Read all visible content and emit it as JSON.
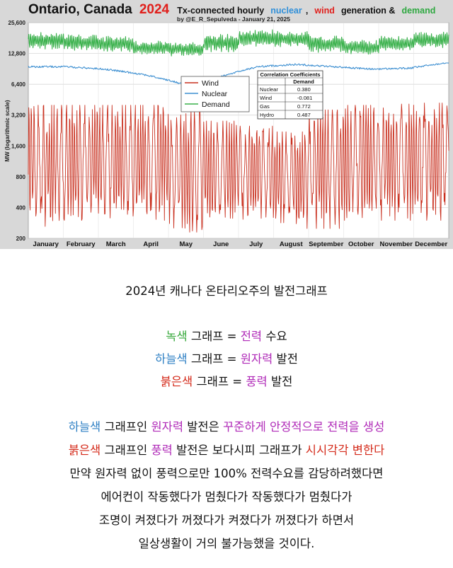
{
  "chart_data": {
    "type": "line",
    "title": {
      "region": "Ontario, Canada",
      "year": "2024",
      "prefix": "Tx-connected hourly",
      "w_nuclear": "nuclear",
      "sep1": ",",
      "w_wind": "wind",
      "w_generation": "generation &",
      "w_demand": "demand"
    },
    "subtitle": "by @E_R_Sepulveda - January 21, 2025",
    "ylabel": "MW (logarithmic scale)",
    "yscale": "log",
    "ylim": [
      200,
      25600
    ],
    "yticks": [
      200,
      400,
      800,
      1600,
      3200,
      6400,
      12800,
      25600
    ],
    "ytick_labels": [
      "200",
      "400",
      "800",
      "1,600",
      "3,200",
      "6,400",
      "12,800",
      "25,600"
    ],
    "x_months": [
      "January",
      "February",
      "March",
      "April",
      "May",
      "June",
      "July",
      "August",
      "September",
      "October",
      "November",
      "December"
    ],
    "series": [
      {
        "name": "Wind",
        "color": "#c9301f",
        "approx_monthly_range_mw": [
          [
            250,
            4000
          ],
          [
            300,
            4000
          ],
          [
            300,
            4000
          ],
          [
            300,
            4000
          ],
          [
            230,
            3500
          ],
          [
            300,
            2800
          ],
          [
            300,
            2500
          ],
          [
            250,
            2200
          ],
          [
            250,
            3600
          ],
          [
            300,
            4000
          ],
          [
            300,
            4100
          ],
          [
            300,
            4200
          ]
        ]
      },
      {
        "name": "Nuclear",
        "color": "#3d8fd1",
        "approx_monthly_level_mw": [
          9500,
          9500,
          9000,
          8000,
          6500,
          7500,
          9500,
          10000,
          9500,
          9000,
          9200,
          10500
        ]
      },
      {
        "name": "Demand",
        "color": "#38b04a",
        "approx_monthly_range_mw": [
          [
            14000,
            21000
          ],
          [
            13500,
            20000
          ],
          [
            13000,
            19000
          ],
          [
            12500,
            17000
          ],
          [
            12000,
            16500
          ],
          [
            13000,
            20000
          ],
          [
            15000,
            22000
          ],
          [
            14500,
            21500
          ],
          [
            13000,
            19500
          ],
          [
            12500,
            17500
          ],
          [
            13500,
            19000
          ],
          [
            14500,
            21000
          ]
        ]
      }
    ],
    "legend": {
      "position": "center",
      "entries": [
        "Wind",
        "Nuclear",
        "Demand"
      ]
    },
    "correlation_table": {
      "title": "Correlation Coefficients",
      "header": "Demand",
      "rows": [
        {
          "label": "Nuclear",
          "value": "0.380"
        },
        {
          "label": "Wind",
          "value": "-0.081"
        },
        {
          "label": "Gas",
          "value": "0.772"
        },
        {
          "label": "Hydro",
          "value": "0.487"
        }
      ]
    }
  },
  "caption": {
    "heading": "2024년 캐나다 온타리오주의 발전그래프",
    "legend_lines": [
      {
        "c1": "녹색",
        "t1": " 그래프 = ",
        "c2": "전력",
        "t2": " 수요"
      },
      {
        "c1": "하늘색",
        "t1": " 그래프 = ",
        "c2": "원자력",
        "t2": " 발전"
      },
      {
        "c1": "붉은색",
        "t1": " 그래프 = ",
        "c2": "풍력",
        "t2": " 발전"
      }
    ],
    "para1": {
      "a": "하늘색",
      "b": " 그래프인 ",
      "c": "원자력",
      "d": " 발전은 ",
      "e": "꾸준하게 안정적으로 전력을 생성"
    },
    "para2": {
      "a": "붉은색",
      "b": " 그래프인 ",
      "c": "풍력",
      "d": " 발전은 보다시피 그래프가 ",
      "e": "시시각각 변한다"
    },
    "para3": "만약 원자력 없이 풍력으로만 100% 전력수요를 감당하려했다면",
    "para4": "에어컨이 작동했다가 멈췄다가 작동했다가 멈췄다가",
    "para5": "조명이 켜졌다가 꺼졌다가 켜졌다가 꺼졌다가 하면서",
    "para6": "일상생활이 거의 불가능했을 것이다."
  }
}
